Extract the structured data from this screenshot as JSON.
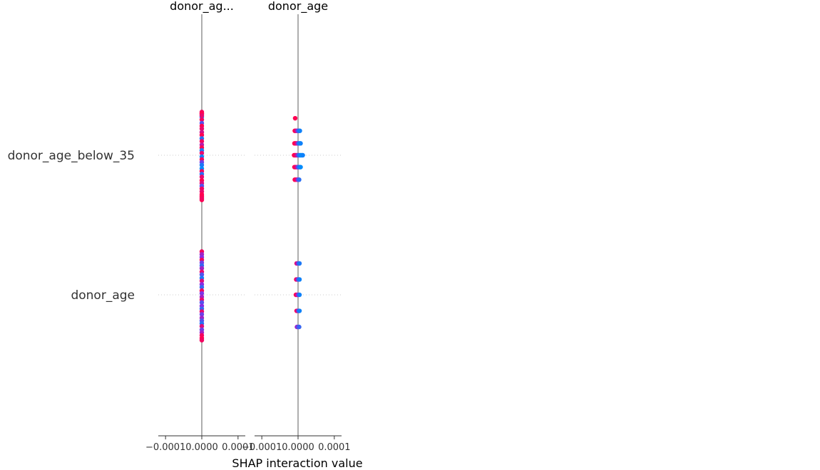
{
  "chart_data": {
    "type": "scatter",
    "xlabel": "SHAP interaction value",
    "rows": [
      "donor_age_below_35",
      "donor_age"
    ],
    "panels": [
      {
        "title": "donor_ag...",
        "xlim": [
          -0.00012,
          0.00012
        ],
        "ticks": [
          {
            "value": -0.0001,
            "label": "−0.0001"
          },
          {
            "value": 0.0,
            "label": "0.0000"
          },
          {
            "value": 0.0001,
            "label": "0.0001"
          }
        ],
        "points": {
          "donor_age_below_35": [
            {
              "x": 0.0,
              "y": 0.62,
              "c": 0.95
            },
            {
              "x": 0.0,
              "y": 0.59,
              "c": 0.9
            },
            {
              "x": 0.0,
              "y": 0.55,
              "c": 0.2
            },
            {
              "x": 0.0,
              "y": 0.51,
              "c": 0.95
            },
            {
              "x": 0.0,
              "y": 0.46,
              "c": 0.3
            },
            {
              "x": 0.0,
              "y": 0.42,
              "c": 1.0
            },
            {
              "x": 0.0,
              "y": 0.38,
              "c": 0.9
            },
            {
              "x": 0.0,
              "y": 0.33,
              "c": 0.8
            },
            {
              "x": 0.0,
              "y": 0.29,
              "c": 1.0
            },
            {
              "x": 0.0,
              "y": 0.24,
              "c": 0.15
            },
            {
              "x": 0.0,
              "y": 0.2,
              "c": 0.95
            },
            {
              "x": 0.0,
              "y": 0.15,
              "c": 0.7
            },
            {
              "x": 0.0,
              "y": 0.11,
              "c": 1.0
            },
            {
              "x": 0.0,
              "y": 0.07,
              "c": 0.1
            },
            {
              "x": 0.0,
              "y": 0.03,
              "c": 0.9
            },
            {
              "x": 0.0,
              "y": -0.02,
              "c": 0.05
            },
            {
              "x": 0.0,
              "y": -0.06,
              "c": 0.95
            },
            {
              "x": 0.0,
              "y": -0.1,
              "c": 0.4
            },
            {
              "x": 0.0,
              "y": -0.14,
              "c": 0.1
            },
            {
              "x": 0.0,
              "y": -0.19,
              "c": 0.0
            },
            {
              "x": 0.0,
              "y": -0.23,
              "c": 0.95
            },
            {
              "x": 0.0,
              "y": -0.27,
              "c": 0.15
            },
            {
              "x": 0.0,
              "y": -0.31,
              "c": 0.9
            },
            {
              "x": 0.0,
              "y": -0.36,
              "c": 1.0
            },
            {
              "x": 0.0,
              "y": -0.4,
              "c": 0.85
            },
            {
              "x": 0.0,
              "y": -0.44,
              "c": 0.3
            },
            {
              "x": 0.0,
              "y": -0.48,
              "c": 0.95
            },
            {
              "x": 0.0,
              "y": -0.52,
              "c": 0.9
            },
            {
              "x": 0.0,
              "y": -0.56,
              "c": 1.0
            },
            {
              "x": 0.0,
              "y": -0.6,
              "c": 0.95
            },
            {
              "x": 0.0,
              "y": -0.64,
              "c": 1.0
            },
            {
              "x": 0.0,
              "y": 0.6,
              "c": 1.0
            },
            {
              "x": 0.0,
              "y": 0.57,
              "c": 0.9
            },
            {
              "x": 0.0,
              "y": -0.58,
              "c": 1.0
            },
            {
              "x": 0.0,
              "y": -0.62,
              "c": 0.95
            }
          ],
          "donor_age": [
            {
              "x": 0.0,
              "y": 0.62,
              "c": 0.95
            },
            {
              "x": 0.0,
              "y": 0.58,
              "c": 0.6
            },
            {
              "x": 0.0,
              "y": 0.54,
              "c": 0.5
            },
            {
              "x": 0.0,
              "y": 0.5,
              "c": 0.95
            },
            {
              "x": 0.0,
              "y": 0.46,
              "c": 0.4
            },
            {
              "x": 0.0,
              "y": 0.42,
              "c": 0.2
            },
            {
              "x": 0.0,
              "y": 0.38,
              "c": 0.6
            },
            {
              "x": 0.0,
              "y": 0.33,
              "c": 0.9
            },
            {
              "x": 0.0,
              "y": 0.29,
              "c": 0.3
            },
            {
              "x": 0.0,
              "y": 0.24,
              "c": 0.1
            },
            {
              "x": 0.0,
              "y": 0.2,
              "c": 0.85
            },
            {
              "x": 0.0,
              "y": 0.15,
              "c": 0.5
            },
            {
              "x": 0.0,
              "y": 0.11,
              "c": 0.2
            },
            {
              "x": 0.0,
              "y": 0.06,
              "c": 0.95
            },
            {
              "x": 0.0,
              "y": 0.02,
              "c": 0.45
            },
            {
              "x": 0.0,
              "y": -0.03,
              "c": 0.6
            },
            {
              "x": 0.0,
              "y": -0.07,
              "c": 0.9
            },
            {
              "x": 0.0,
              "y": -0.11,
              "c": 0.3
            },
            {
              "x": 0.0,
              "y": -0.16,
              "c": 0.5
            },
            {
              "x": 0.0,
              "y": -0.2,
              "c": 0.2
            },
            {
              "x": 0.0,
              "y": -0.24,
              "c": 0.9
            },
            {
              "x": 0.0,
              "y": -0.28,
              "c": 0.4
            },
            {
              "x": 0.0,
              "y": -0.33,
              "c": 0.6
            },
            {
              "x": 0.0,
              "y": -0.37,
              "c": 0.3
            },
            {
              "x": 0.0,
              "y": -0.41,
              "c": 0.15
            },
            {
              "x": 0.0,
              "y": -0.45,
              "c": 0.85
            },
            {
              "x": 0.0,
              "y": -0.5,
              "c": 0.4
            },
            {
              "x": 0.0,
              "y": -0.54,
              "c": 0.6
            },
            {
              "x": 0.0,
              "y": -0.58,
              "c": 0.95
            },
            {
              "x": 0.0,
              "y": -0.62,
              "c": 1.0
            },
            {
              "x": 0.0,
              "y": -0.65,
              "c": 0.95
            }
          ]
        }
      },
      {
        "title": "donor_age",
        "xlim": [
          -0.00012,
          0.00012
        ],
        "ticks": [
          {
            "value": -0.0001,
            "label": "−0.0001"
          },
          {
            "value": 0.0,
            "label": "0.0000"
          },
          {
            "value": 0.0001,
            "label": "0.0001"
          }
        ],
        "points": {
          "donor_age_below_35": [
            {
              "x": -8e-06,
              "y": 0.53,
              "c": 1.0
            },
            {
              "x": -9e-06,
              "y": 0.35,
              "c": 1.0
            },
            {
              "x": -6e-06,
              "y": 0.35,
              "c": 0.95
            },
            {
              "x": -3e-06,
              "y": 0.35,
              "c": 0.7
            },
            {
              "x": 0.0,
              "y": 0.35,
              "c": 0.4
            },
            {
              "x": 3e-06,
              "y": 0.35,
              "c": 0.1
            },
            {
              "x": 5e-06,
              "y": 0.35,
              "c": 0.05
            },
            {
              "x": -1e-05,
              "y": 0.17,
              "c": 1.0
            },
            {
              "x": -7e-06,
              "y": 0.17,
              "c": 1.0
            },
            {
              "x": -4e-06,
              "y": 0.17,
              "c": 0.9
            },
            {
              "x": -1e-06,
              "y": 0.17,
              "c": 0.6
            },
            {
              "x": 2e-06,
              "y": 0.17,
              "c": 0.2
            },
            {
              "x": 5e-06,
              "y": 0.17,
              "c": 0.0
            },
            {
              "x": 7e-06,
              "y": 0.17,
              "c": 0.05
            },
            {
              "x": -1.1e-05,
              "y": 0.0,
              "c": 1.0
            },
            {
              "x": -8e-06,
              "y": 0.0,
              "c": 1.0
            },
            {
              "x": -5e-06,
              "y": 0.0,
              "c": 0.9
            },
            {
              "x": -2e-06,
              "y": 0.0,
              "c": 0.7
            },
            {
              "x": 1e-06,
              "y": 0.0,
              "c": 0.3
            },
            {
              "x": 4e-06,
              "y": 0.0,
              "c": 0.1
            },
            {
              "x": 7e-06,
              "y": 0.0,
              "c": 0.0
            },
            {
              "x": 1e-05,
              "y": 0.0,
              "c": 0.0
            },
            {
              "x": 1.3e-05,
              "y": 0.0,
              "c": 0.05
            },
            {
              "x": -1e-05,
              "y": -0.17,
              "c": 1.0
            },
            {
              "x": -7e-06,
              "y": -0.17,
              "c": 0.95
            },
            {
              "x": -4e-06,
              "y": -0.17,
              "c": 0.9
            },
            {
              "x": -1e-06,
              "y": -0.17,
              "c": 0.5
            },
            {
              "x": 2e-06,
              "y": -0.17,
              "c": 0.2
            },
            {
              "x": 5e-06,
              "y": -0.17,
              "c": 0.05
            },
            {
              "x": 7e-06,
              "y": -0.17,
              "c": 0.0
            },
            {
              "x": -9e-06,
              "y": -0.35,
              "c": 1.0
            },
            {
              "x": -6e-06,
              "y": -0.35,
              "c": 1.0
            },
            {
              "x": -3e-06,
              "y": -0.35,
              "c": 0.85
            },
            {
              "x": 0.0,
              "y": -0.35,
              "c": 0.5
            },
            {
              "x": 3e-06,
              "y": -0.35,
              "c": 0.15
            }
          ],
          "donor_age": [
            {
              "x": -4e-06,
              "y": 0.45,
              "c": 0.9
            },
            {
              "x": -1e-06,
              "y": 0.45,
              "c": 0.6
            },
            {
              "x": 2e-06,
              "y": 0.45,
              "c": 0.3
            },
            {
              "x": 4e-06,
              "y": 0.45,
              "c": 0.1
            },
            {
              "x": -5e-06,
              "y": 0.22,
              "c": 1.0
            },
            {
              "x": -2e-06,
              "y": 0.22,
              "c": 0.7
            },
            {
              "x": 1e-06,
              "y": 0.22,
              "c": 0.3
            },
            {
              "x": 4e-06,
              "y": 0.22,
              "c": 0.05
            },
            {
              "x": -6e-06,
              "y": 0.0,
              "c": 1.0
            },
            {
              "x": -3e-06,
              "y": 0.0,
              "c": 0.9
            },
            {
              "x": 0.0,
              "y": 0.0,
              "c": 0.5
            },
            {
              "x": 4e-06,
              "y": 0.0,
              "c": 0.05
            },
            {
              "x": -4e-06,
              "y": -0.23,
              "c": 1.0
            },
            {
              "x": -1e-06,
              "y": -0.23,
              "c": 0.7
            },
            {
              "x": 2e-06,
              "y": -0.23,
              "c": 0.3
            },
            {
              "x": 4e-06,
              "y": -0.23,
              "c": 0.05
            },
            {
              "x": -3e-06,
              "y": -0.46,
              "c": 0.6
            },
            {
              "x": 0.0,
              "y": -0.46,
              "c": 0.4
            },
            {
              "x": 3e-06,
              "y": -0.46,
              "c": 0.2
            }
          ]
        }
      }
    ],
    "colors": {
      "low": "#008bfb",
      "high": "#ff0052",
      "zero_line": "#999999",
      "axis": "#333333",
      "row_line": "#cccccc"
    }
  }
}
